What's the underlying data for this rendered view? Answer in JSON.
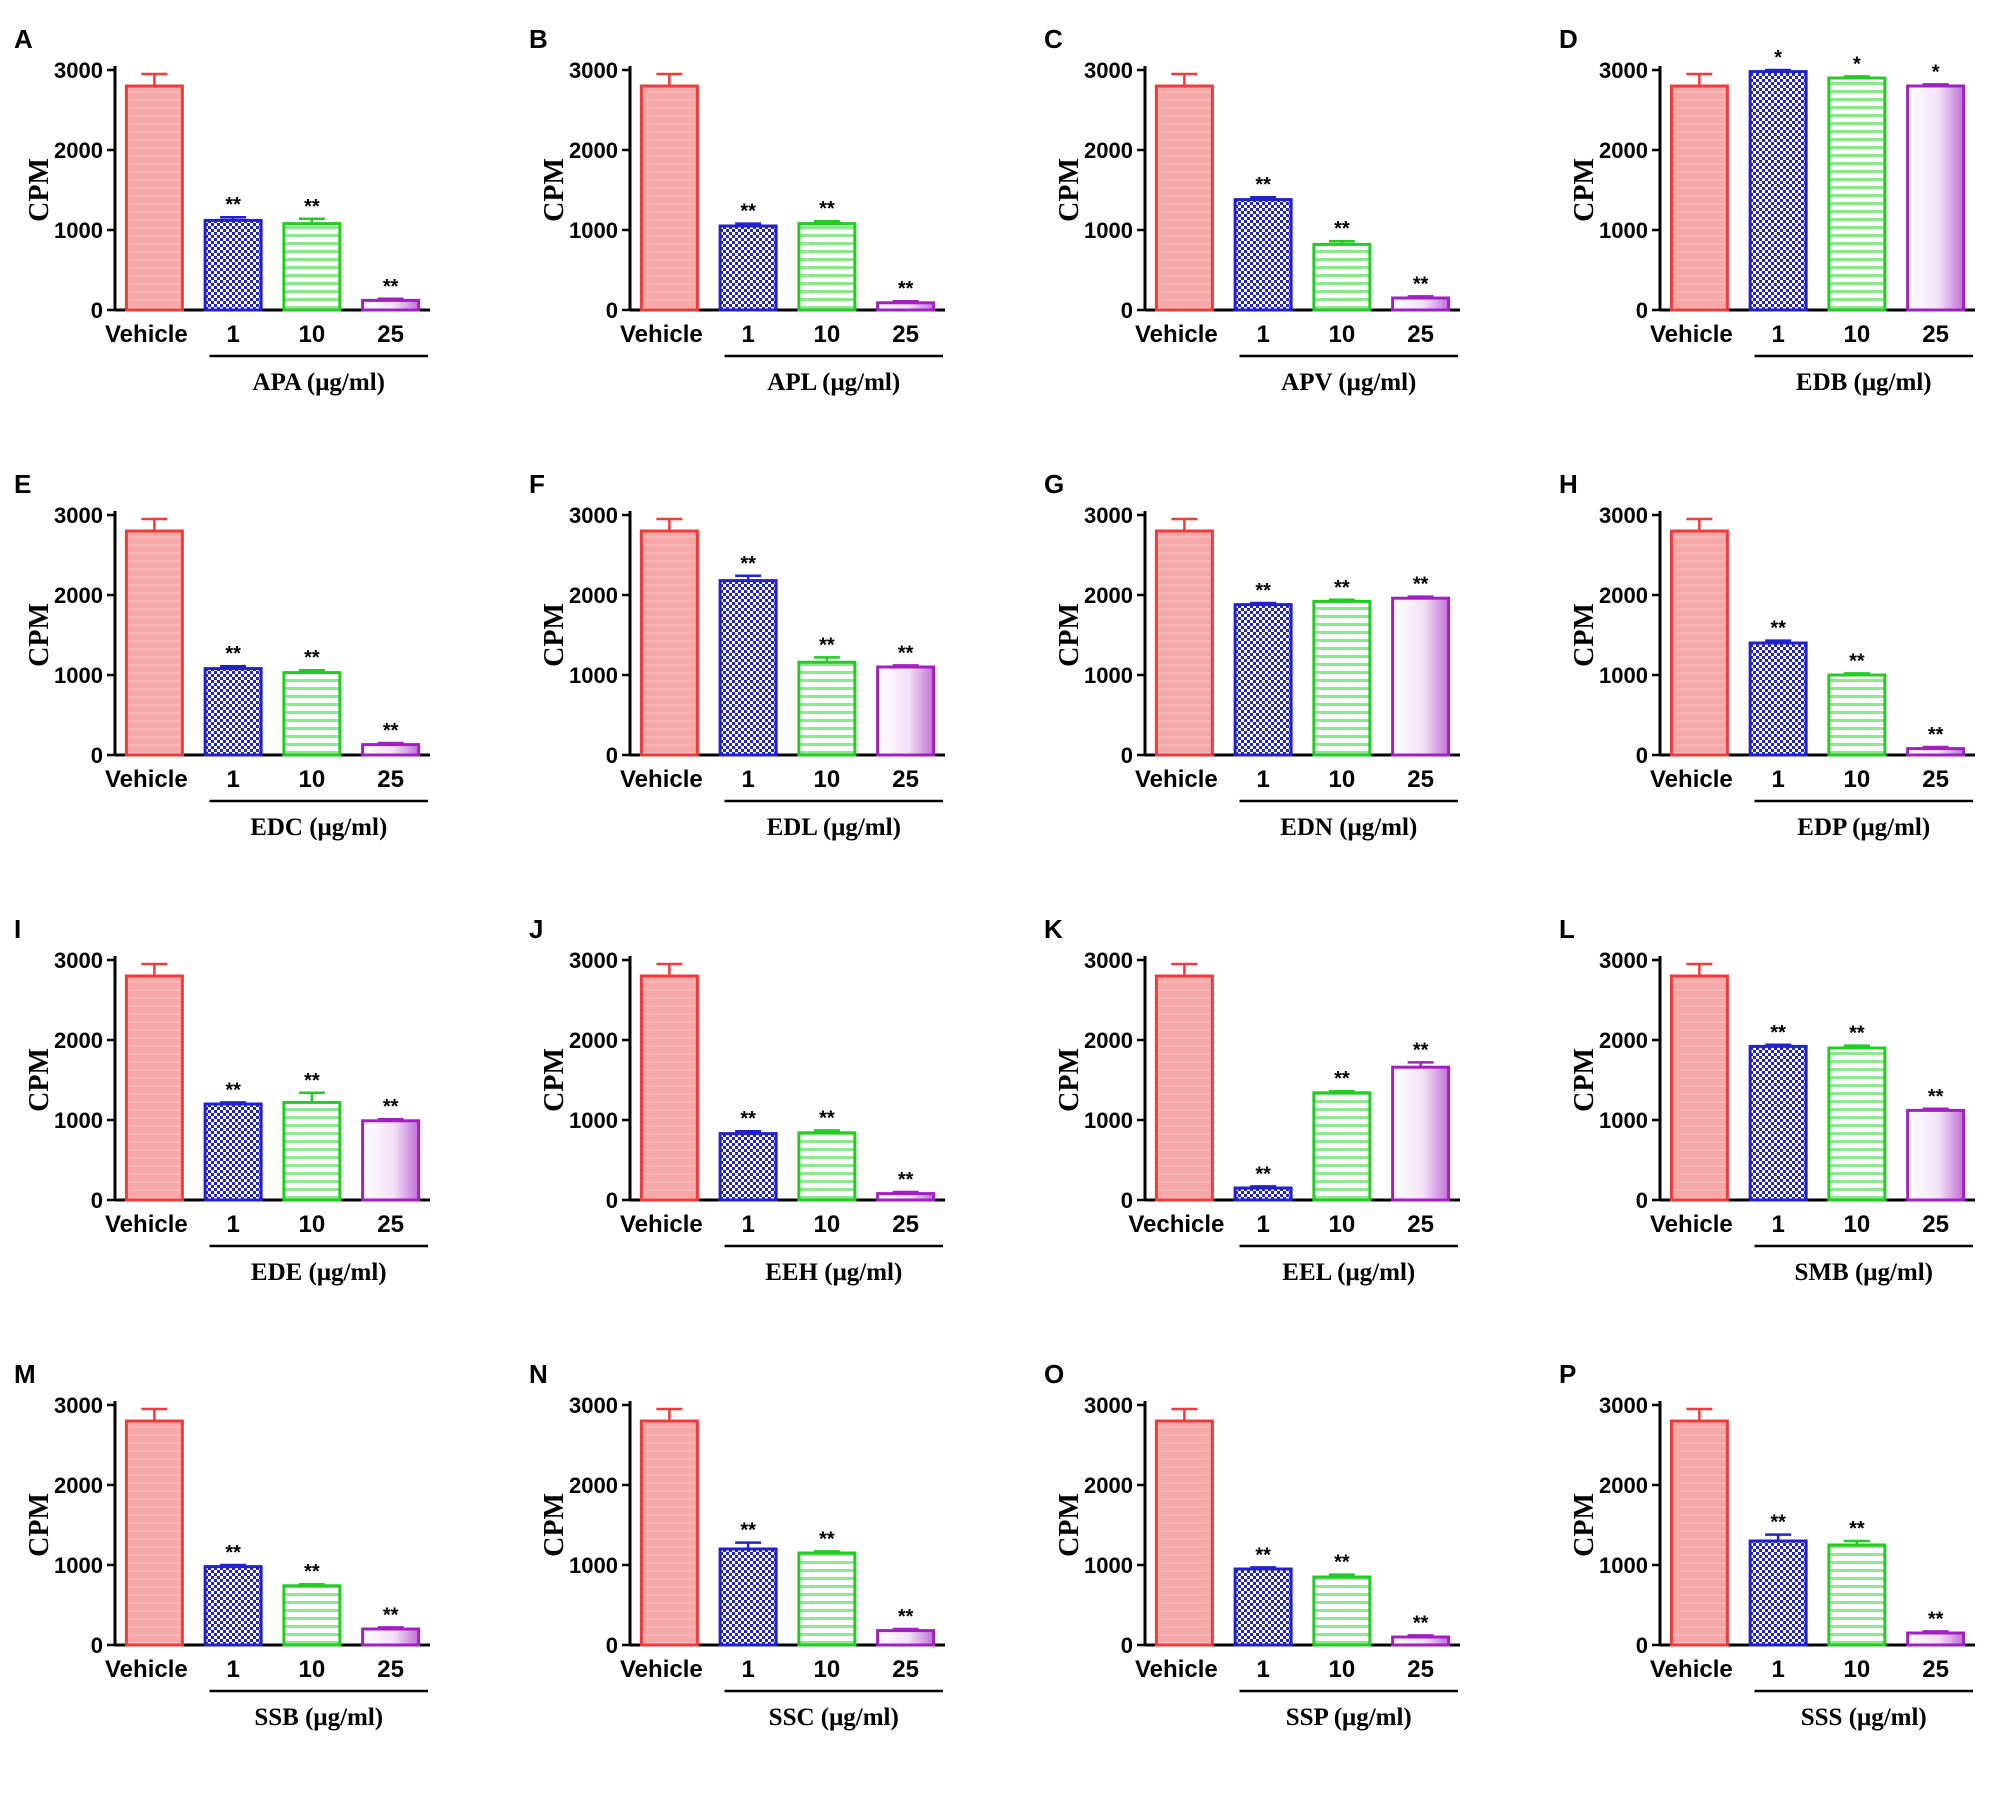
{
  "colors": {
    "vehicle": "#ee3b3b",
    "vehicle_fill": "#f7a8a8",
    "dose1": "#2222cc",
    "dose10": "#22cc22",
    "dose25": "#a020c0",
    "axis": "#000000"
  },
  "icons": [
    "checker-pattern",
    "horizontal-stripe-pattern",
    "vertical-gradient-pattern"
  ],
  "chart_data": [
    {
      "type": "bar",
      "panel": "A",
      "ylabel": "CPM",
      "xlabel": "APA (μg/ml)",
      "categories": [
        "Vehicle",
        "1",
        "10",
        "25"
      ],
      "values": [
        2800,
        1120,
        1080,
        120
      ],
      "errors": [
        150,
        40,
        60,
        20
      ],
      "significance": [
        "",
        "**",
        "**",
        "**"
      ],
      "ylim": [
        0,
        3000
      ],
      "yticks": [
        "0",
        "1000",
        "2000",
        "3000"
      ]
    },
    {
      "type": "bar",
      "panel": "B",
      "ylabel": "CPM",
      "xlabel": "APL (μg/ml)",
      "categories": [
        "Vehicle",
        "1",
        "10",
        "25"
      ],
      "values": [
        2800,
        1050,
        1080,
        90
      ],
      "errors": [
        150,
        30,
        30,
        20
      ],
      "significance": [
        "",
        "**",
        "**",
        "**"
      ],
      "ylim": [
        0,
        3000
      ],
      "yticks": [
        "0",
        "1000",
        "2000",
        "3000"
      ]
    },
    {
      "type": "bar",
      "panel": "C",
      "ylabel": "CPM",
      "xlabel": "APV (μg/ml)",
      "categories": [
        "Vehicle",
        "1",
        "10",
        "25"
      ],
      "values": [
        2800,
        1380,
        820,
        150
      ],
      "errors": [
        150,
        30,
        40,
        20
      ],
      "significance": [
        "",
        "**",
        "**",
        "**"
      ],
      "ylim": [
        0,
        3000
      ],
      "yticks": [
        "0",
        "1000",
        "2000",
        "3000"
      ]
    },
    {
      "type": "bar",
      "panel": "D",
      "ylabel": "CPM",
      "xlabel": "EDB (μg/ml)",
      "categories": [
        "Vehicle",
        "1",
        "10",
        "25"
      ],
      "values": [
        2800,
        2980,
        2900,
        2800
      ],
      "errors": [
        150,
        20,
        20,
        20
      ],
      "significance": [
        "",
        "*",
        "*",
        "*"
      ],
      "ylim": [
        0,
        3000
      ],
      "yticks": [
        "0",
        "1000",
        "2000",
        "3000"
      ]
    },
    {
      "type": "bar",
      "panel": "E",
      "ylabel": "CPM",
      "xlabel": "EDC (μg/ml)",
      "categories": [
        "Vehicle",
        "1",
        "10",
        "25"
      ],
      "values": [
        2800,
        1080,
        1030,
        130
      ],
      "errors": [
        150,
        30,
        30,
        20
      ],
      "significance": [
        "",
        "**",
        "**",
        "**"
      ],
      "ylim": [
        0,
        3000
      ],
      "yticks": [
        "0",
        "1000",
        "2000",
        "3000"
      ]
    },
    {
      "type": "bar",
      "panel": "F",
      "ylabel": "CPM",
      "xlabel": "EDL (μg/ml)",
      "categories": [
        "Vehicle",
        "1",
        "10",
        "25"
      ],
      "values": [
        2800,
        2180,
        1160,
        1100
      ],
      "errors": [
        150,
        60,
        60,
        20
      ],
      "significance": [
        "",
        "**",
        "**",
        "**"
      ],
      "ylim": [
        0,
        3000
      ],
      "yticks": [
        "0",
        "1000",
        "2000",
        "3000"
      ]
    },
    {
      "type": "bar",
      "panel": "G",
      "ylabel": "CPM",
      "xlabel": "EDN (μg/ml)",
      "categories": [
        "Vehicle",
        "1",
        "10",
        "25"
      ],
      "values": [
        2800,
        1880,
        1920,
        1960
      ],
      "errors": [
        150,
        20,
        20,
        20
      ],
      "significance": [
        "",
        "**",
        "**",
        "**"
      ],
      "ylim": [
        0,
        3000
      ],
      "yticks": [
        "0",
        "1000",
        "2000",
        "3000"
      ]
    },
    {
      "type": "bar",
      "panel": "H",
      "ylabel": "CPM",
      "xlabel": "EDP (μg/ml)",
      "categories": [
        "Vehicle",
        "1",
        "10",
        "25"
      ],
      "values": [
        2800,
        1400,
        1000,
        80
      ],
      "errors": [
        150,
        30,
        20,
        20
      ],
      "significance": [
        "",
        "**",
        "**",
        "**"
      ],
      "ylim": [
        0,
        3000
      ],
      "yticks": [
        "0",
        "1000",
        "2000",
        "3000"
      ]
    },
    {
      "type": "bar",
      "panel": "I",
      "ylabel": "CPM",
      "xlabel": "EDE (μg/ml)",
      "categories": [
        "Vehicle",
        "1",
        "10",
        "25"
      ],
      "values": [
        2800,
        1200,
        1220,
        990
      ],
      "errors": [
        150,
        20,
        120,
        20
      ],
      "significance": [
        "",
        "**",
        "**",
        "**"
      ],
      "ylim": [
        0,
        3000
      ],
      "yticks": [
        "0",
        "1000",
        "2000",
        "3000"
      ]
    },
    {
      "type": "bar",
      "panel": "J",
      "ylabel": "CPM",
      "xlabel": "EEH (μg/ml)",
      "categories": [
        "Vehicle",
        "1",
        "10",
        "25"
      ],
      "values": [
        2800,
        830,
        840,
        80
      ],
      "errors": [
        150,
        30,
        30,
        20
      ],
      "significance": [
        "",
        "**",
        "**",
        "**"
      ],
      "ylim": [
        0,
        3000
      ],
      "yticks": [
        "0",
        "1000",
        "2000",
        "3000"
      ]
    },
    {
      "type": "bar",
      "panel": "K",
      "ylabel": "CPM",
      "xlabel": "EEL (μg/ml)",
      "categories": [
        "Vechicle",
        "1",
        "10",
        "25"
      ],
      "values": [
        2800,
        150,
        1340,
        1660
      ],
      "errors": [
        150,
        20,
        20,
        60
      ],
      "significance": [
        "",
        "**",
        "**",
        "**"
      ],
      "ylim": [
        0,
        3000
      ],
      "yticks": [
        "0",
        "1000",
        "2000",
        "3000"
      ]
    },
    {
      "type": "bar",
      "panel": "L",
      "ylabel": "CPM",
      "xlabel": "SMB (μg/ml)",
      "categories": [
        "Vehicle",
        "1",
        "10",
        "25"
      ],
      "values": [
        2800,
        1920,
        1900,
        1120
      ],
      "errors": [
        150,
        20,
        30,
        20
      ],
      "significance": [
        "",
        "**",
        "**",
        "**"
      ],
      "ylim": [
        0,
        3000
      ],
      "yticks": [
        "0",
        "1000",
        "2000",
        "3000"
      ]
    },
    {
      "type": "bar",
      "panel": "M",
      "ylabel": "CPM",
      "xlabel": "SSB (μg/ml)",
      "categories": [
        "Vehicle",
        "1",
        "10",
        "25"
      ],
      "values": [
        2800,
        980,
        740,
        200
      ],
      "errors": [
        150,
        20,
        20,
        20
      ],
      "significance": [
        "",
        "**",
        "**",
        "**"
      ],
      "ylim": [
        0,
        3000
      ],
      "yticks": [
        "0",
        "1000",
        "2000",
        "3000"
      ]
    },
    {
      "type": "bar",
      "panel": "N",
      "ylabel": "CPM",
      "xlabel": "SSC (μg/ml)",
      "categories": [
        "Vehicle",
        "1",
        "10",
        "25"
      ],
      "values": [
        2800,
        1200,
        1150,
        180
      ],
      "errors": [
        150,
        80,
        20,
        20
      ],
      "significance": [
        "",
        "**",
        "**",
        "**"
      ],
      "ylim": [
        0,
        3000
      ],
      "yticks": [
        "0",
        "1000",
        "2000",
        "3000"
      ]
    },
    {
      "type": "bar",
      "panel": "O",
      "ylabel": "CPM",
      "xlabel": "SSP (μg/ml)",
      "categories": [
        "Vehicle",
        "1",
        "10",
        "25"
      ],
      "values": [
        2800,
        950,
        850,
        100
      ],
      "errors": [
        150,
        20,
        30,
        20
      ],
      "significance": [
        "",
        "**",
        "**",
        "**"
      ],
      "ylim": [
        0,
        3000
      ],
      "yticks": [
        "0",
        "1000",
        "2000",
        "3000"
      ]
    },
    {
      "type": "bar",
      "panel": "P",
      "ylabel": "CPM",
      "xlabel": "SSS (μg/ml)",
      "categories": [
        "Vehicle",
        "1",
        "10",
        "25"
      ],
      "values": [
        2800,
        1300,
        1250,
        150
      ],
      "errors": [
        150,
        80,
        50,
        20
      ],
      "significance": [
        "",
        "**",
        "**",
        "**"
      ],
      "ylim": [
        0,
        3000
      ],
      "yticks": [
        "0",
        "1000",
        "2000",
        "3000"
      ]
    }
  ]
}
